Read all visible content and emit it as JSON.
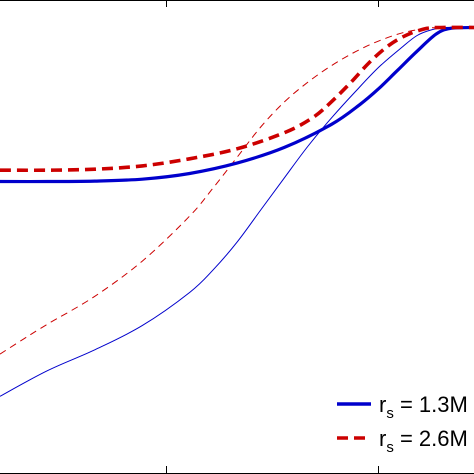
{
  "chart_data": {
    "type": "line",
    "title": "",
    "xlabel": "",
    "ylabel": "",
    "xlim": [
      0,
      1
    ],
    "ylim": [
      0,
      1
    ],
    "grid": false,
    "legend_placement": "bottom-right",
    "series": [
      {
        "key": "thick-solid",
        "name": "r_s = 1.3M",
        "legend": {
          "main": "r",
          "sub": "s",
          "rest": " = 1.3M"
        },
        "color": "#0000cc",
        "dash": "solid",
        "weight": "thick",
        "x": [
          0.0,
          0.1,
          0.2,
          0.3,
          0.4,
          0.5,
          0.6,
          0.7,
          0.76,
          0.8,
          0.84,
          0.88,
          0.92,
          0.95,
          1.0
        ],
        "y": [
          0.617,
          0.617,
          0.618,
          0.622,
          0.634,
          0.656,
          0.689,
          0.738,
          0.78,
          0.814,
          0.853,
          0.892,
          0.928,
          0.94,
          0.942
        ]
      },
      {
        "key": "thick-dashed",
        "name": "r_s = 2.6M",
        "legend": {
          "main": "r",
          "sub": "s",
          "rest": " = 2.6M"
        },
        "color": "#cc0000",
        "dash": "dashed",
        "weight": "thick",
        "x": [
          0.0,
          0.1,
          0.2,
          0.3,
          0.4,
          0.5,
          0.6,
          0.66,
          0.7,
          0.74,
          0.78,
          0.82,
          0.86,
          0.9,
          0.93,
          1.0
        ],
        "y": [
          0.641,
          0.641,
          0.643,
          0.65,
          0.665,
          0.686,
          0.72,
          0.752,
          0.786,
          0.826,
          0.869,
          0.904,
          0.927,
          0.94,
          0.942,
          0.942
        ]
      },
      {
        "key": "thin-solid",
        "name": "",
        "color": "#0000cc",
        "dash": "solid",
        "weight": "thin",
        "x": [
          0.0,
          0.1,
          0.2,
          0.3,
          0.4,
          0.45,
          0.5,
          0.55,
          0.6,
          0.65,
          0.7,
          0.75,
          0.8,
          0.85,
          0.88,
          0.91,
          0.94,
          1.0
        ],
        "y": [
          0.164,
          0.218,
          0.262,
          0.313,
          0.383,
          0.431,
          0.489,
          0.557,
          0.625,
          0.692,
          0.752,
          0.807,
          0.859,
          0.902,
          0.925,
          0.937,
          0.942,
          0.942
        ]
      },
      {
        "key": "thin-dashed",
        "name": "",
        "color": "#cc0000",
        "dash": "dashed",
        "weight": "thin",
        "x": [
          0.0,
          0.05,
          0.1,
          0.2,
          0.3,
          0.4,
          0.45,
          0.5,
          0.55,
          0.6,
          0.65,
          0.7,
          0.75,
          0.8,
          0.85,
          0.9,
          0.93,
          1.0
        ],
        "y": [
          0.253,
          0.285,
          0.316,
          0.375,
          0.449,
          0.544,
          0.604,
          0.668,
          0.732,
          0.785,
          0.827,
          0.862,
          0.891,
          0.914,
          0.931,
          0.94,
          0.942,
          0.942
        ]
      }
    ]
  }
}
